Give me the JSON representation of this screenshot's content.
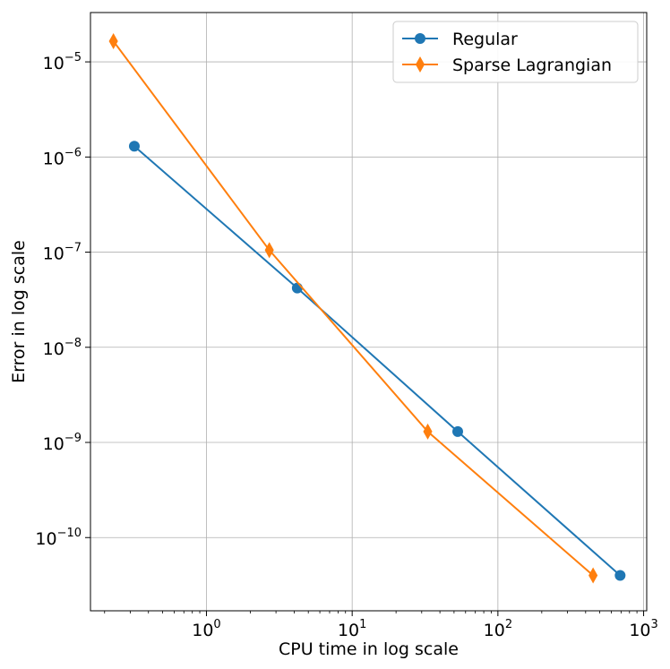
{
  "chart_data": {
    "type": "line",
    "xlabel": "CPU time in log scale",
    "ylabel": "Error in log scale",
    "xscale": "log",
    "yscale": "log",
    "xlim": [
      0.16,
      1050
    ],
    "ylim": [
      1.7e-11,
      3.3e-05
    ],
    "grid": true,
    "legend_position": "top-right",
    "x_ticks": [
      {
        "value": 1,
        "base": "10",
        "exp": "0"
      },
      {
        "value": 10,
        "base": "10",
        "exp": "1"
      },
      {
        "value": 100,
        "base": "10",
        "exp": "2"
      },
      {
        "value": 1000,
        "base": "10",
        "exp": "3"
      }
    ],
    "y_ticks": [
      {
        "value": 1e-10,
        "base": "10",
        "exp": "−10"
      },
      {
        "value": 1e-09,
        "base": "10",
        "exp": "−9"
      },
      {
        "value": 1e-08,
        "base": "10",
        "exp": "−8"
      },
      {
        "value": 1e-07,
        "base": "10",
        "exp": "−7"
      },
      {
        "value": 1e-06,
        "base": "10",
        "exp": "−6"
      },
      {
        "value": 1e-05,
        "base": "10",
        "exp": "−5"
      }
    ],
    "series": [
      {
        "name": "Regular",
        "color": "#1f77b4",
        "marker": "circle",
        "x": [
          0.32,
          4.2,
          53,
          690
        ],
        "y": [
          1.3e-06,
          4.2e-08,
          1.3e-09,
          4e-11
        ]
      },
      {
        "name": "Sparse Lagrangian",
        "color": "#ff7f0e",
        "marker": "thin-diamond",
        "x": [
          0.23,
          2.7,
          33,
          450
        ],
        "y": [
          1.65e-05,
          1.05e-07,
          1.3e-09,
          4e-11
        ]
      }
    ]
  }
}
